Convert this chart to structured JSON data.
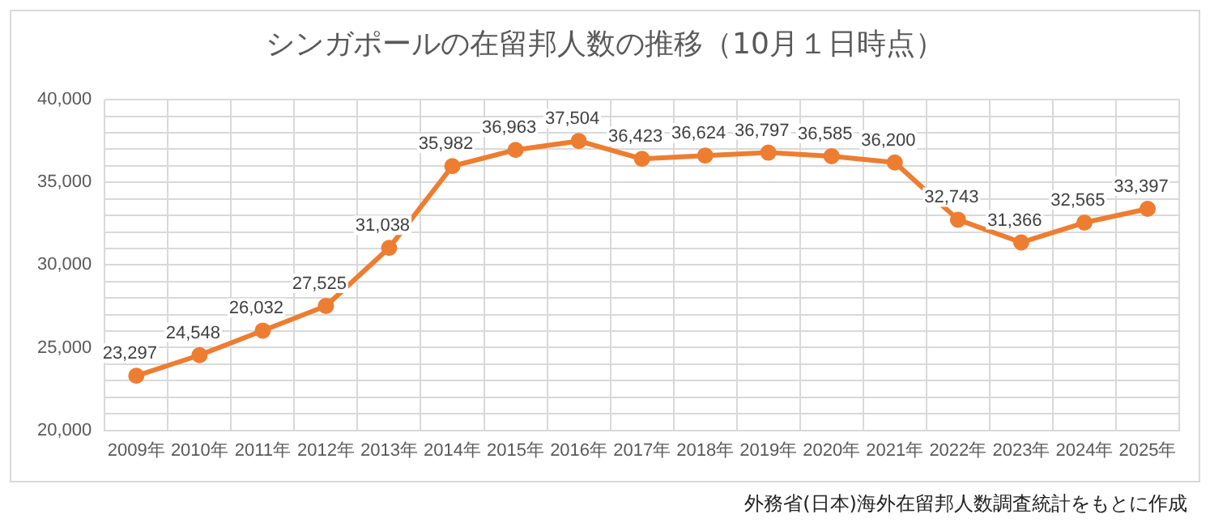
{
  "chart_data": {
    "type": "line",
    "title": "シンガポールの在留邦人数の推移（10月１日時点）",
    "categories": [
      "2009年",
      "2010年",
      "2011年",
      "2012年",
      "2013年",
      "2014年",
      "2015年",
      "2016年",
      "2017年",
      "2018年",
      "2019年",
      "2020年",
      "2021年",
      "2022年",
      "2023年",
      "2024年",
      "2025年"
    ],
    "series": [
      {
        "color": "#ed7d31",
        "values": [
          23297,
          24548,
          26032,
          27525,
          31038,
          35982,
          36963,
          37504,
          36423,
          36624,
          36797,
          36585,
          36200,
          32743,
          31366,
          32565,
          33397
        ],
        "value_labels": [
          "23,297",
          "24,548",
          "26,032",
          "27,525",
          "31,038",
          "35,982",
          "36,963",
          "37,504",
          "36,423",
          "36,624",
          "36,797",
          "36,585",
          "36,200",
          "32,743",
          "31,366",
          "32,565",
          "33,397"
        ]
      }
    ],
    "ylim": [
      20000,
      40000
    ],
    "yticks": [
      {
        "value": 20000,
        "label": "20,000"
      },
      {
        "value": 21000,
        "label": null
      },
      {
        "value": 22000,
        "label": null
      },
      {
        "value": 23000,
        "label": null
      },
      {
        "value": 24000,
        "label": null
      },
      {
        "value": 25000,
        "label": "25,000"
      },
      {
        "value": 26000,
        "label": null
      },
      {
        "value": 27000,
        "label": null
      },
      {
        "value": 28000,
        "label": null
      },
      {
        "value": 29000,
        "label": null
      },
      {
        "value": 30000,
        "label": "30,000"
      },
      {
        "value": 31000,
        "label": null
      },
      {
        "value": 32000,
        "label": null
      },
      {
        "value": 33000,
        "label": null
      },
      {
        "value": 34000,
        "label": null
      },
      {
        "value": 35000,
        "label": "35,000"
      },
      {
        "value": 36000,
        "label": null
      },
      {
        "value": 37000,
        "label": null
      },
      {
        "value": 38000,
        "label": null
      },
      {
        "value": 39000,
        "label": null
      },
      {
        "value": 40000,
        "label": "40,000"
      }
    ],
    "grid": true,
    "marker": "circle",
    "annotations": [
      "外務省(日本)海外在留邦人数調査統計をもとに作成"
    ]
  }
}
